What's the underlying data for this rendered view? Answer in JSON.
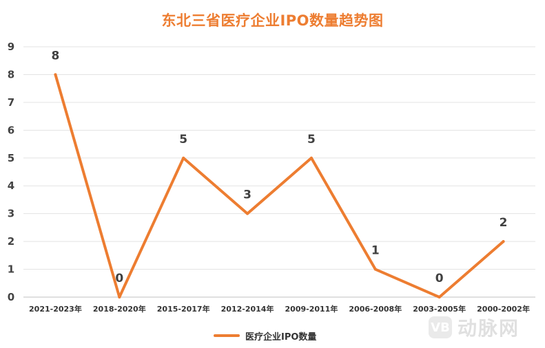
{
  "chart_data": {
    "type": "line",
    "title": "东北三省医疗企业IPO数量趋势图",
    "categories": [
      "2021-2023年",
      "2018-2020年",
      "2015-2017年",
      "2012-2014年",
      "2009-2011年",
      "2006-2008年",
      "2003-2005年",
      "2000-2002年"
    ],
    "series": [
      {
        "name": "医疗企业IPO数量",
        "values": [
          8,
          0,
          5,
          3,
          5,
          1,
          0,
          2
        ],
        "color": "#ED7D31"
      }
    ],
    "yticks": [
      "0",
      "1",
      "2",
      "3",
      "4",
      "5",
      "6",
      "7",
      "8",
      "9"
    ],
    "ylim": [
      0,
      9
    ],
    "xlabel": "",
    "ylabel": "",
    "grid": true,
    "legend_position": "bottom"
  },
  "watermark": {
    "logo_text": "VB",
    "text": "动脉网"
  }
}
